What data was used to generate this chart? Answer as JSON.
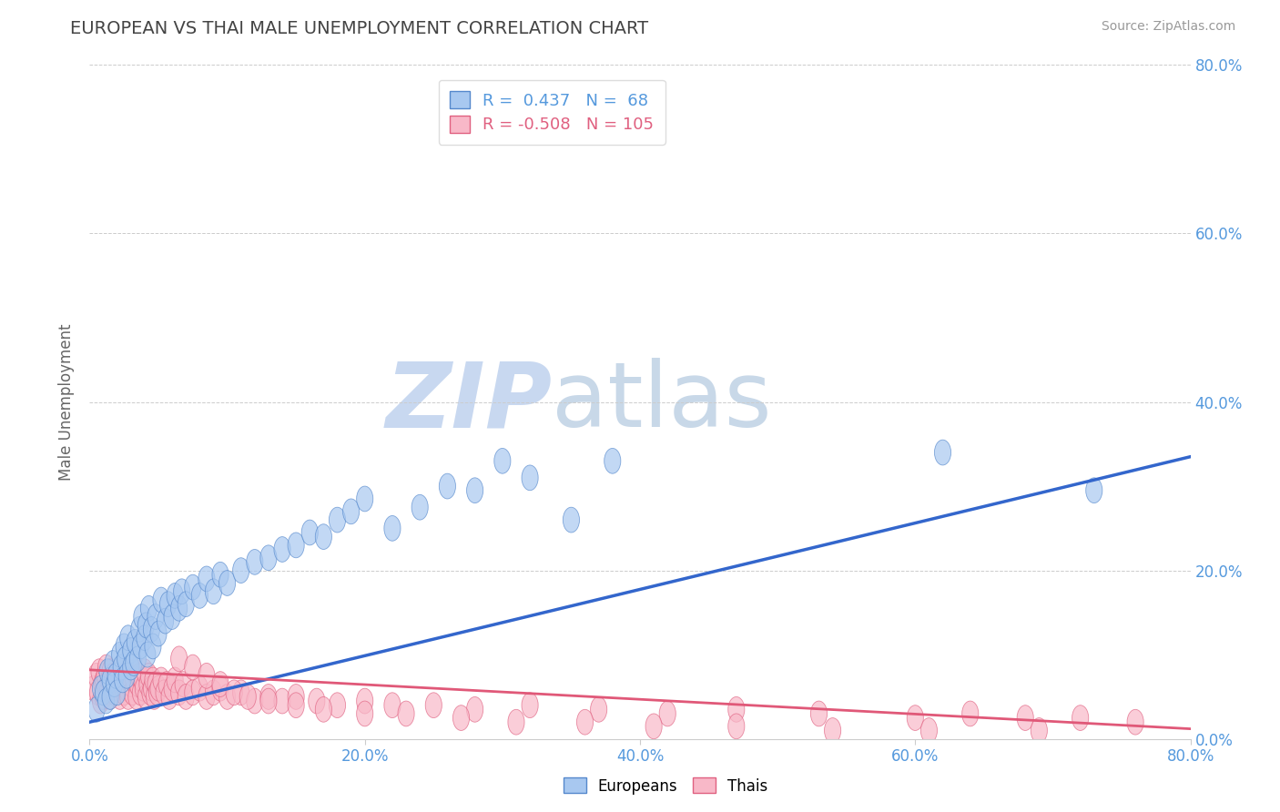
{
  "title": "EUROPEAN VS THAI MALE UNEMPLOYMENT CORRELATION CHART",
  "source_text": "Source: ZipAtlas.com",
  "ylabel": "Male Unemployment",
  "watermark_zip": "ZIP",
  "watermark_atlas": "atlas",
  "xlim": [
    0.0,
    0.8
  ],
  "ylim": [
    0.0,
    0.8
  ],
  "xtick_vals": [
    0.0,
    0.2,
    0.4,
    0.6,
    0.8
  ],
  "ytick_vals": [
    0.0,
    0.2,
    0.4,
    0.6,
    0.8
  ],
  "european_color": "#a8c8f0",
  "thai_color": "#f8b8c8",
  "european_edge_color": "#5588cc",
  "thai_edge_color": "#e06080",
  "european_line_color": "#3366cc",
  "thai_line_color": "#e05878",
  "legend_R_european": "0.437",
  "legend_N_european": "68",
  "legend_R_thai": "-0.508",
  "legend_N_thai": "105",
  "title_color": "#444444",
  "axis_label_color": "#666666",
  "tick_label_color": "#5599dd",
  "grid_color": "#cccccc",
  "background_color": "#ffffff",
  "watermark_color_zip": "#c8d8f0",
  "watermark_color_atlas": "#c8d8e8",
  "euro_trend_x0": 0.0,
  "euro_trend_y0": 0.02,
  "euro_trend_x1": 0.8,
  "euro_trend_y1": 0.335,
  "thai_trend_x0": 0.0,
  "thai_trend_y0": 0.082,
  "thai_trend_x1": 0.8,
  "thai_trend_y1": 0.012,
  "european_points_x": [
    0.005,
    0.008,
    0.01,
    0.012,
    0.013,
    0.015,
    0.015,
    0.017,
    0.018,
    0.019,
    0.02,
    0.022,
    0.023,
    0.024,
    0.025,
    0.026,
    0.027,
    0.028,
    0.03,
    0.03,
    0.032,
    0.033,
    0.035,
    0.036,
    0.037,
    0.038,
    0.04,
    0.041,
    0.042,
    0.043,
    0.045,
    0.046,
    0.048,
    0.05,
    0.052,
    0.055,
    0.057,
    0.06,
    0.062,
    0.065,
    0.067,
    0.07,
    0.075,
    0.08,
    0.085,
    0.09,
    0.095,
    0.1,
    0.11,
    0.12,
    0.13,
    0.14,
    0.15,
    0.16,
    0.17,
    0.18,
    0.19,
    0.2,
    0.22,
    0.24,
    0.26,
    0.28,
    0.3,
    0.32,
    0.35,
    0.38,
    0.62,
    0.73
  ],
  "european_points_y": [
    0.035,
    0.06,
    0.055,
    0.045,
    0.08,
    0.07,
    0.05,
    0.09,
    0.065,
    0.075,
    0.055,
    0.1,
    0.085,
    0.07,
    0.11,
    0.095,
    0.075,
    0.12,
    0.105,
    0.085,
    0.09,
    0.115,
    0.095,
    0.13,
    0.11,
    0.145,
    0.12,
    0.135,
    0.1,
    0.155,
    0.13,
    0.11,
    0.145,
    0.125,
    0.165,
    0.14,
    0.16,
    0.145,
    0.17,
    0.155,
    0.175,
    0.16,
    0.18,
    0.17,
    0.19,
    0.175,
    0.195,
    0.185,
    0.2,
    0.21,
    0.215,
    0.225,
    0.23,
    0.245,
    0.24,
    0.26,
    0.27,
    0.285,
    0.25,
    0.275,
    0.3,
    0.295,
    0.33,
    0.31,
    0.26,
    0.33,
    0.34,
    0.295
  ],
  "thai_points_x": [
    0.003,
    0.005,
    0.006,
    0.007,
    0.008,
    0.009,
    0.01,
    0.01,
    0.011,
    0.012,
    0.012,
    0.013,
    0.014,
    0.015,
    0.015,
    0.016,
    0.017,
    0.018,
    0.019,
    0.02,
    0.021,
    0.022,
    0.023,
    0.024,
    0.025,
    0.026,
    0.027,
    0.028,
    0.029,
    0.03,
    0.031,
    0.032,
    0.033,
    0.034,
    0.035,
    0.036,
    0.037,
    0.038,
    0.039,
    0.04,
    0.041,
    0.042,
    0.043,
    0.044,
    0.045,
    0.046,
    0.047,
    0.048,
    0.049,
    0.05,
    0.052,
    0.054,
    0.056,
    0.058,
    0.06,
    0.062,
    0.065,
    0.068,
    0.07,
    0.075,
    0.08,
    0.085,
    0.09,
    0.095,
    0.1,
    0.11,
    0.12,
    0.13,
    0.14,
    0.15,
    0.165,
    0.18,
    0.2,
    0.22,
    0.25,
    0.28,
    0.32,
    0.37,
    0.42,
    0.47,
    0.53,
    0.6,
    0.64,
    0.68,
    0.72,
    0.76,
    0.065,
    0.075,
    0.085,
    0.095,
    0.105,
    0.115,
    0.13,
    0.15,
    0.17,
    0.2,
    0.23,
    0.27,
    0.31,
    0.36,
    0.41,
    0.47,
    0.54,
    0.61,
    0.69
  ],
  "thai_points_y": [
    0.06,
    0.075,
    0.055,
    0.08,
    0.045,
    0.065,
    0.07,
    0.05,
    0.075,
    0.06,
    0.085,
    0.055,
    0.07,
    0.08,
    0.05,
    0.065,
    0.075,
    0.055,
    0.07,
    0.06,
    0.08,
    0.05,
    0.065,
    0.075,
    0.055,
    0.07,
    0.06,
    0.05,
    0.075,
    0.065,
    0.055,
    0.07,
    0.08,
    0.05,
    0.065,
    0.075,
    0.055,
    0.07,
    0.06,
    0.08,
    0.05,
    0.065,
    0.075,
    0.055,
    0.06,
    0.07,
    0.05,
    0.065,
    0.055,
    0.06,
    0.07,
    0.055,
    0.065,
    0.05,
    0.06,
    0.07,
    0.055,
    0.065,
    0.05,
    0.055,
    0.06,
    0.05,
    0.055,
    0.06,
    0.05,
    0.055,
    0.045,
    0.05,
    0.045,
    0.05,
    0.045,
    0.04,
    0.045,
    0.04,
    0.04,
    0.035,
    0.04,
    0.035,
    0.03,
    0.035,
    0.03,
    0.025,
    0.03,
    0.025,
    0.025,
    0.02,
    0.095,
    0.085,
    0.075,
    0.065,
    0.055,
    0.05,
    0.045,
    0.04,
    0.035,
    0.03,
    0.03,
    0.025,
    0.02,
    0.02,
    0.015,
    0.015,
    0.01,
    0.01,
    0.01
  ]
}
